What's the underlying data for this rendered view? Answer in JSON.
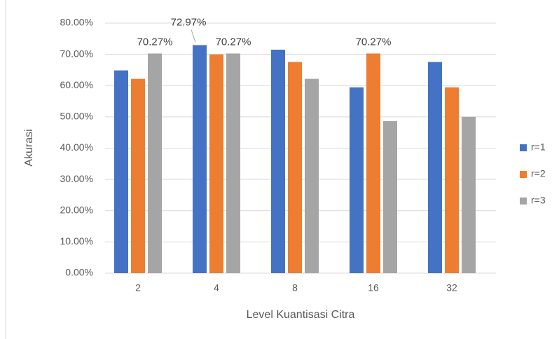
{
  "chart_data": {
    "type": "bar",
    "x_label": "Level Kuantisasi Citra",
    "y_label": "Akurasi",
    "categories": [
      "2",
      "4",
      "8",
      "16",
      "32"
    ],
    "series": [
      {
        "name": "r=1",
        "color": "#4472c4",
        "values": [
          64.86,
          72.97,
          71.5,
          59.46,
          67.57
        ],
        "value_labels": [
          null,
          "72.97%",
          null,
          null,
          null
        ]
      },
      {
        "name": "r=2",
        "color": "#ed7d31",
        "values": [
          62.16,
          70,
          67.57,
          70.27,
          59.46
        ],
        "value_labels": [
          null,
          null,
          null,
          "70.27%",
          null
        ]
      },
      {
        "name": "r=3",
        "color": "#a5a5a5",
        "values": [
          70.27,
          70.27,
          62.16,
          48.65,
          50
        ],
        "value_labels": [
          "70.27%",
          "70.27%",
          null,
          null,
          null
        ]
      }
    ],
    "ylim": [
      0,
      80
    ],
    "yticks": [
      {
        "value": 0,
        "label": "0.00%"
      },
      {
        "value": 10,
        "label": "10.00%"
      },
      {
        "value": 20,
        "label": "20.00%"
      },
      {
        "value": 30,
        "label": "30.00%"
      },
      {
        "value": 40,
        "label": "40.00%"
      },
      {
        "value": 50,
        "label": "50.00%"
      },
      {
        "value": 60,
        "label": "60.00%"
      },
      {
        "value": 70,
        "label": "70.00%"
      },
      {
        "value": 80,
        "label": "80.00%"
      }
    ],
    "grid": true,
    "legend": "right"
  }
}
